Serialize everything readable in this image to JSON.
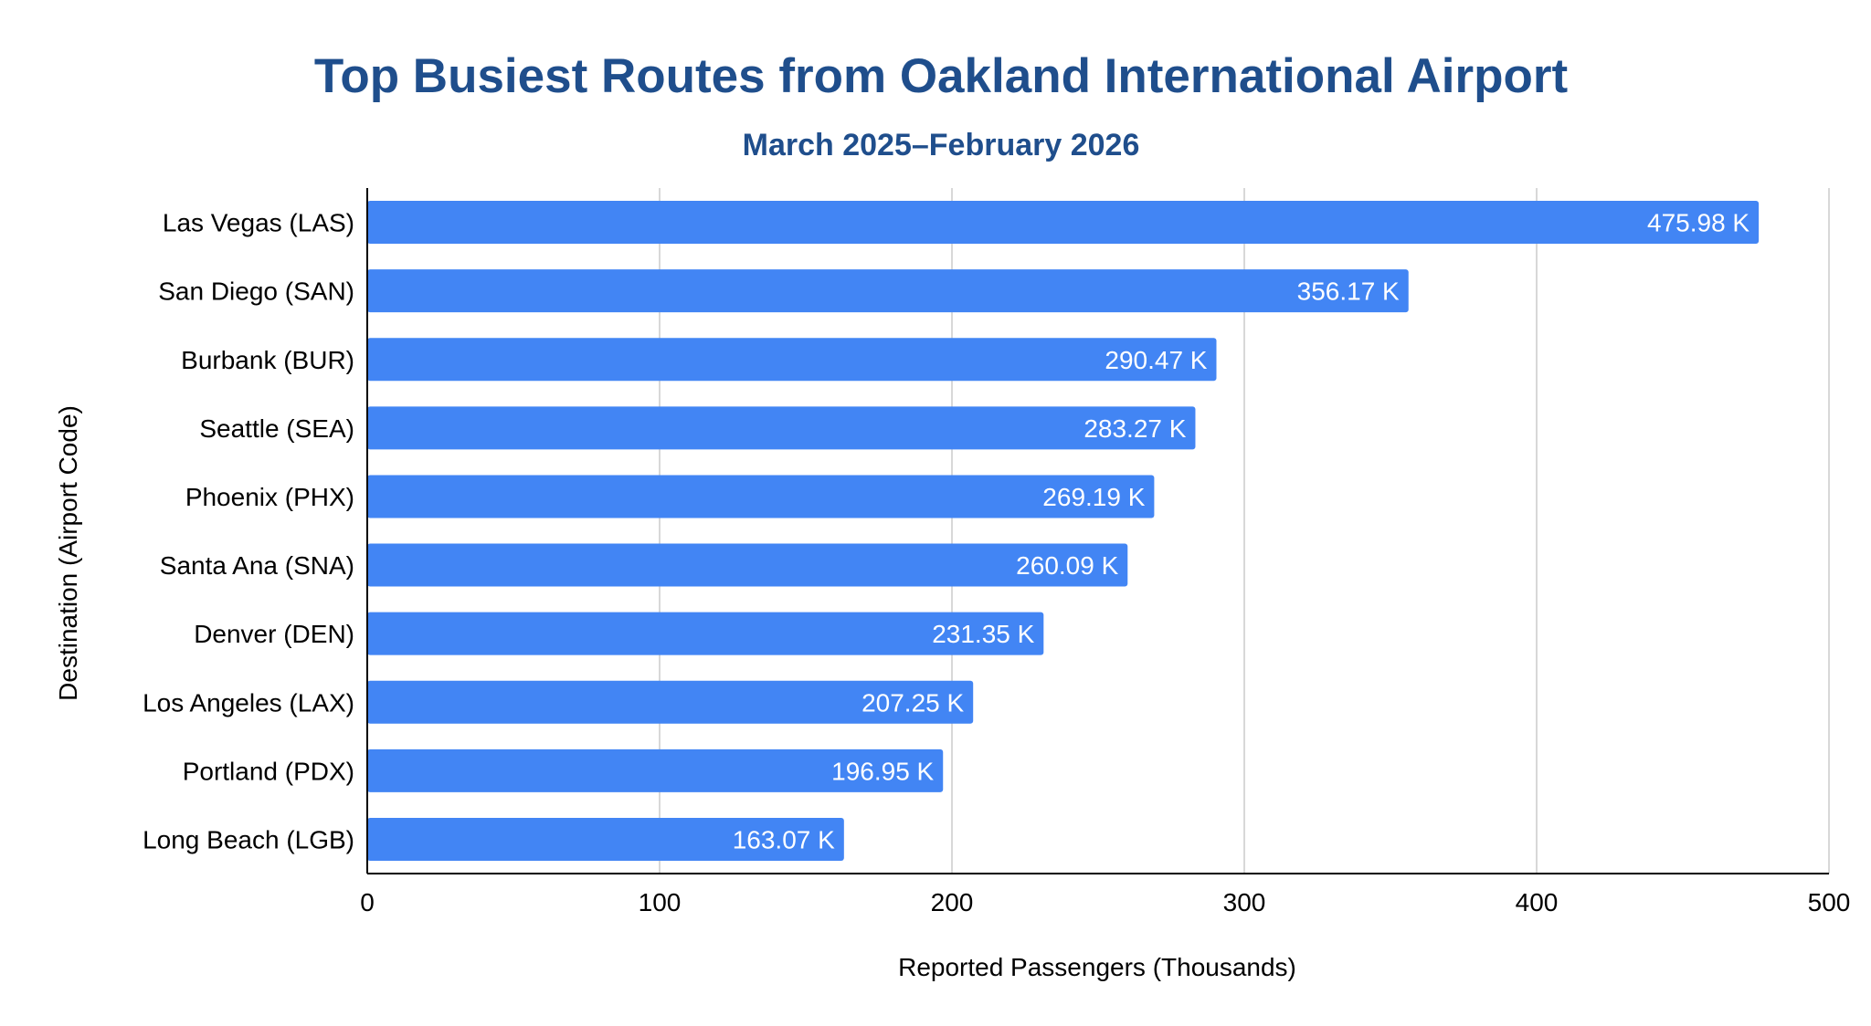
{
  "colors": {
    "bar": "#4285f4",
    "title": "#1f4e8c",
    "grid": "#cccccc",
    "axis": "#000000",
    "data_label": "#ffffff"
  },
  "chart_data": {
    "type": "bar",
    "orientation": "horizontal",
    "title": "Top Busiest Routes from Oakland International Airport",
    "subtitle": "March 2025–February 2026",
    "xlabel": "Reported Passengers (Thousands)",
    "ylabel": "Destination (Airport Code)",
    "xlim": [
      0,
      500
    ],
    "xticks": [
      "0",
      "100",
      "200",
      "300",
      "400",
      "500"
    ],
    "grid": "vertical",
    "legend": "none",
    "categories": [
      "Las Vegas (LAS)",
      "San Diego (SAN)",
      "Burbank (BUR)",
      "Seattle (SEA)",
      "Phoenix (PHX)",
      "Santa Ana (SNA)",
      "Denver (DEN)",
      "Los Angeles (LAX)",
      "Portland (PDX)",
      "Long Beach (LGB)"
    ],
    "values": [
      475.98,
      356.17,
      290.47,
      283.27,
      269.19,
      260.09,
      231.35,
      207.25,
      196.95,
      163.07
    ],
    "data_labels": [
      "475.98 K",
      "356.17 K",
      "290.47 K",
      "283.27 K",
      "269.19 K",
      "260.09 K",
      "231.35 K",
      "207.25 K",
      "196.95 K",
      "163.07 K"
    ]
  }
}
